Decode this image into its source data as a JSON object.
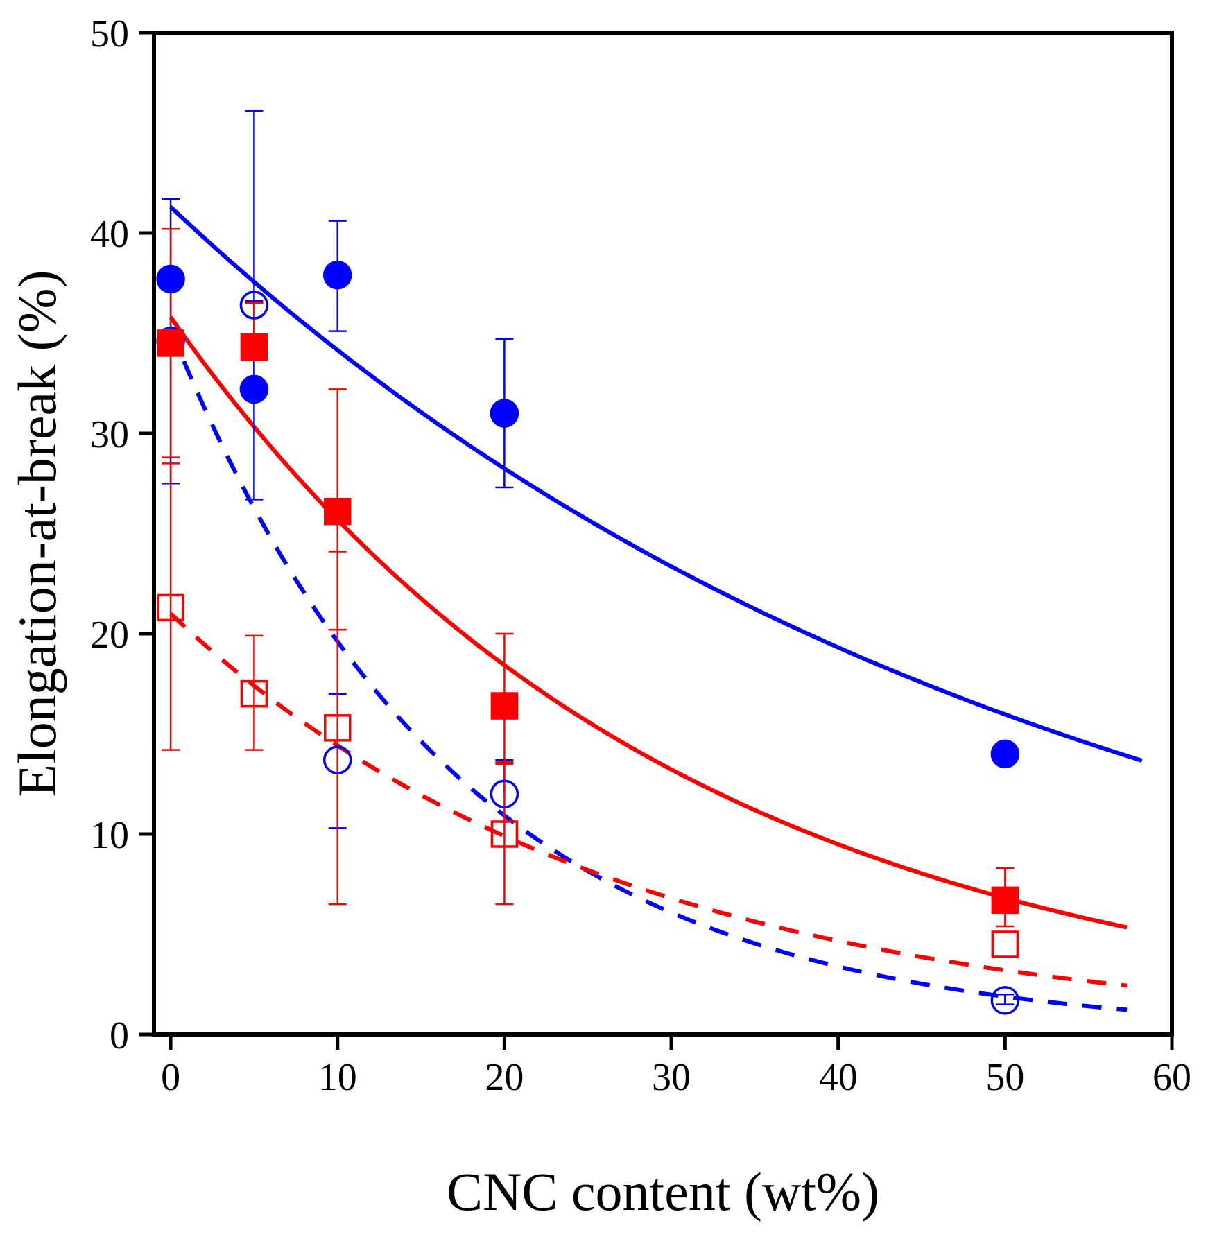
{
  "chart_data": {
    "type": "scatter",
    "title": "",
    "xlabel": "CNC content (wt%)",
    "ylabel": "Elongation-at-break (%)",
    "xlim": [
      -1,
      60
    ],
    "ylim": [
      0,
      50
    ],
    "x_ticks": [
      0,
      10,
      20,
      30,
      40,
      50,
      60
    ],
    "y_ticks": [
      0,
      10,
      20,
      30,
      40,
      50
    ],
    "x_tick_labels": [
      "0",
      "10",
      "20",
      "30",
      "40",
      "50",
      "60"
    ],
    "y_tick_labels": [
      "0",
      "10",
      "20",
      "30",
      "40",
      "50"
    ],
    "grid": false,
    "legend": "none",
    "colors": {
      "blue": "#0000ff",
      "red": "#ff0000",
      "axis": "#000000"
    },
    "series": [
      {
        "name": "filled-circles-blue",
        "marker": "circle",
        "filled": true,
        "color": "#0000ff",
        "x": [
          0,
          5,
          10,
          20,
          50
        ],
        "y": [
          37.7,
          32.2,
          37.9,
          31.0,
          14.0
        ],
        "err_low": [
          null,
          26.7,
          35.1,
          27.3,
          null
        ],
        "err_high": [
          null,
          46.1,
          40.6,
          34.7,
          null
        ]
      },
      {
        "name": "open-circles-blue",
        "marker": "circle",
        "filled": false,
        "color": "#0000ff",
        "x": [
          0,
          5,
          10,
          20,
          50
        ],
        "y": [
          34.6,
          36.4,
          13.7,
          12.0,
          1.7
        ],
        "err_low": [
          27.5,
          32.1,
          10.3,
          null,
          1.5
        ],
        "err_high": [
          41.7,
          36.6,
          17.0,
          13.7,
          2.0
        ]
      },
      {
        "name": "filled-squares-red",
        "marker": "square",
        "filled": true,
        "color": "#ff0000",
        "x": [
          0,
          5,
          10,
          20,
          50
        ],
        "y": [
          34.5,
          34.3,
          26.1,
          16.4,
          6.7
        ],
        "err_low": [
          28.8,
          null,
          20.2,
          13.6,
          5.4
        ],
        "err_high": [
          40.2,
          36.5,
          32.2,
          20.0,
          8.3
        ]
      },
      {
        "name": "open-squares-red",
        "marker": "square",
        "filled": false,
        "color": "#ff0000",
        "x": [
          0,
          5,
          10,
          20,
          50
        ],
        "y": [
          21.3,
          17.0,
          15.3,
          10.0,
          4.5
        ],
        "err_low": [
          14.2,
          14.2,
          6.5,
          6.5,
          null
        ],
        "err_high": [
          28.5,
          19.9,
          24.1,
          13.5,
          null
        ]
      }
    ],
    "fit_curves": [
      {
        "name": "fit-solid-blue",
        "color": "#0000ff",
        "style": "solid",
        "x_start": 0,
        "x_end": 58.2,
        "a": 41.3,
        "k": 0.019
      },
      {
        "name": "fit-solid-red",
        "color": "#ff0000",
        "style": "solid",
        "x_start": 0,
        "x_end": 57.3,
        "a": 35.8,
        "k": 0.0332
      },
      {
        "name": "fit-dashed-blue",
        "color": "#0000ff",
        "style": "dashed",
        "x_start": 0,
        "x_end": 57.3,
        "a": 35.2,
        "k": 0.0585
      },
      {
        "name": "fit-dashed-red",
        "color": "#ff0000",
        "style": "dashed",
        "x_start": 0,
        "x_end": 57.3,
        "a": 21.0,
        "k": 0.0376
      }
    ]
  }
}
